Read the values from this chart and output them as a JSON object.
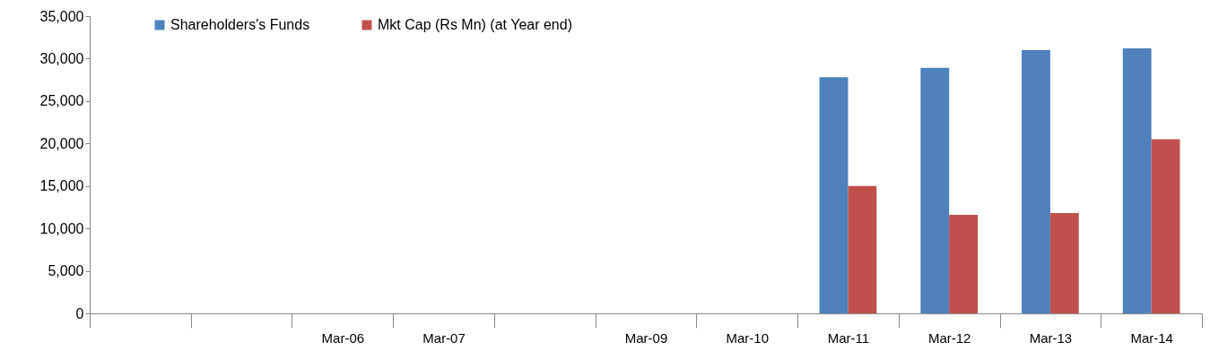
{
  "chart_data": {
    "type": "bar",
    "categories": [
      null,
      null,
      "Mar-06",
      "Mar-07",
      null,
      "Mar-09",
      "Mar-10",
      "Mar-11",
      "Mar-12",
      "Mar-13",
      "Mar-14"
    ],
    "series": [
      {
        "name": "Shareholders's Funds",
        "color": "#4f81bd",
        "values": [
          null,
          null,
          null,
          null,
          null,
          null,
          null,
          27800,
          28900,
          31000,
          31200
        ]
      },
      {
        "name": "Mkt Cap (Rs Mn) (at Year end)",
        "color": "#c0504d",
        "values": [
          null,
          null,
          null,
          null,
          null,
          null,
          null,
          15000,
          11600,
          11800,
          20500
        ]
      }
    ],
    "ylim": [
      0,
      35000
    ],
    "yticks": [
      0,
      {
        "value": 5000,
        "label": "5,000"
      },
      {
        "value": 10000,
        "label": "10,000"
      },
      {
        "value": 15000,
        "label": "15,000"
      },
      {
        "value": 20000,
        "label": "20,000"
      },
      {
        "value": 25000,
        "label": "25,000"
      },
      {
        "value": 30000,
        "label": "30,000"
      },
      {
        "value": 35000,
        "label": "35,000"
      }
    ],
    "legend": "top left"
  }
}
